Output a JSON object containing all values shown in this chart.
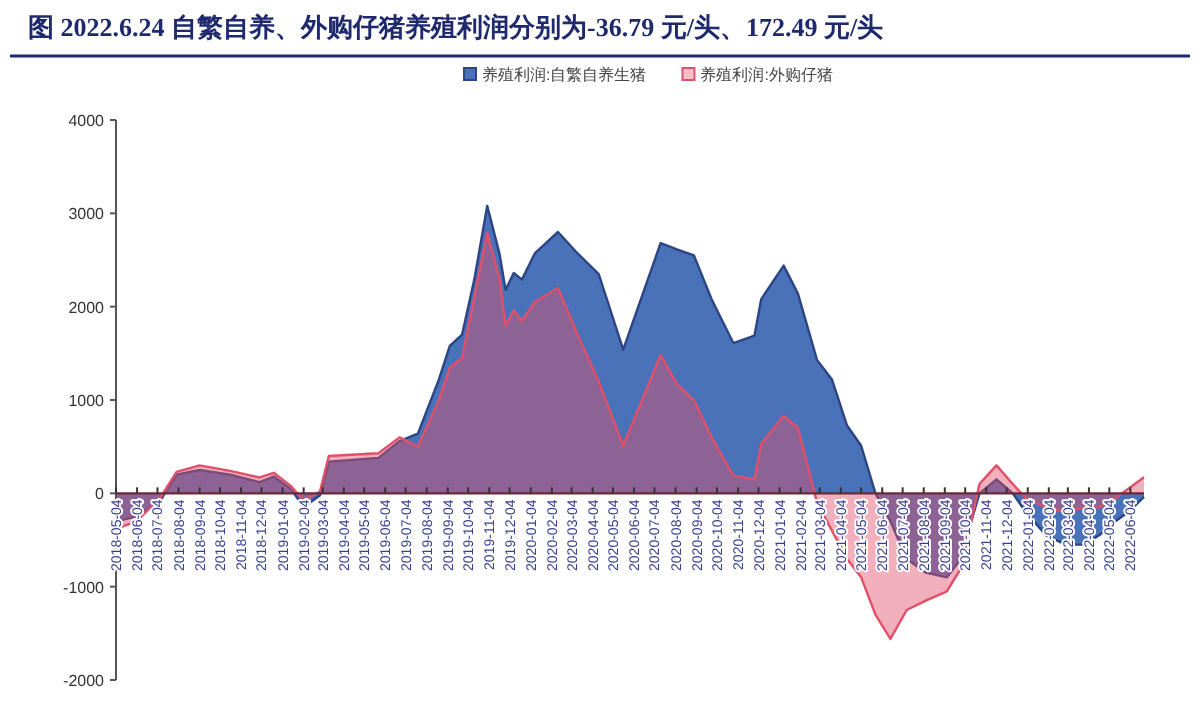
{
  "chart_data": {
    "type": "area",
    "title": "图 2022.6.24 自繁自养、外购仔猪养殖利润分别为-36.79 元/头、172.49 元/头",
    "legend": "top",
    "x": [
      "2018-05-04",
      "2018-06-03",
      "2018-07-08",
      "2018-08-01",
      "2018-09-04",
      "2018-10-19",
      "2018-12-01",
      "2018-12-22",
      "2019-01-16",
      "2019-02-04",
      "2019-02-28",
      "2019-03-13",
      "2019-05-25",
      "2019-06-25",
      "2019-07-22",
      "2019-08-22",
      "2019-09-07",
      "2019-09-25",
      "2019-10-13",
      "2019-11-01",
      "2019-11-19",
      "2019-11-28",
      "2019-12-10",
      "2019-12-22",
      "2020-01-10",
      "2020-02-13",
      "2020-03-13",
      "2020-04-13",
      "2020-05-19",
      "2020-07-13",
      "2020-08-07",
      "2020-08-31",
      "2020-09-26",
      "2020-10-28",
      "2020-11-28",
      "2020-12-08",
      "2021-01-10",
      "2021-01-31",
      "2021-02-28",
      "2021-03-22",
      "2021-04-13",
      "2021-05-04",
      "2021-05-25",
      "2021-06-16",
      "2021-07-10",
      "2021-08-07",
      "2021-09-07",
      "2021-09-28",
      "2021-10-13",
      "2021-10-25",
      "2021-11-19",
      "2021-12-13",
      "2022-01-01",
      "2022-01-31",
      "2022-03-01",
      "2022-03-28",
      "2022-04-19",
      "2022-05-13",
      "2022-06-01",
      "2022-06-24"
    ],
    "series": [
      {
        "name": "养殖利润:自繁自养生猪",
        "color": "#4a72b8",
        "values": [
          -300,
          -250,
          -80,
          200,
          250,
          200,
          120,
          180,
          50,
          -150,
          -20,
          340,
          380,
          560,
          640,
          1220,
          1580,
          1700,
          2290,
          3080,
          2570,
          2180,
          2360,
          2290,
          2570,
          2800,
          2570,
          2350,
          1540,
          2680,
          2610,
          2550,
          2080,
          1610,
          1690,
          2080,
          2440,
          2140,
          1430,
          1220,
          730,
          510,
          0,
          -300,
          -700,
          -850,
          -900,
          -700,
          -300,
          0,
          150,
          0,
          -200,
          -450,
          -550,
          -550,
          -450,
          -300,
          -200,
          -37
        ]
      },
      {
        "name": "养殖利润:外购仔猪",
        "color": "#e0506a",
        "values": [
          -380,
          -300,
          -50,
          230,
          300,
          240,
          170,
          220,
          80,
          -80,
          20,
          400,
          430,
          600,
          500,
          1000,
          1350,
          1450,
          2100,
          2790,
          2300,
          1800,
          1960,
          1850,
          2050,
          2200,
          1700,
          1200,
          510,
          1480,
          1160,
          1000,
          600,
          190,
          150,
          530,
          830,
          700,
          -100,
          -400,
          -700,
          -900,
          -1300,
          -1560,
          -1250,
          -1150,
          -1050,
          -800,
          -300,
          100,
          300,
          100,
          -50,
          -150,
          -200,
          -150,
          -150,
          -50,
          50,
          172
        ]
      }
    ],
    "xlim": [
      "2018-05-04",
      "2022-06-24"
    ],
    "xticks": [
      "2018-05-04",
      "2018-06-04",
      "2018-07-04",
      "2018-08-04",
      "2018-09-04",
      "2018-10-04",
      "2018-11-04",
      "2018-12-04",
      "2019-01-04",
      "2019-02-04",
      "2019-03-04",
      "2019-04-04",
      "2019-05-04",
      "2019-06-04",
      "2019-07-04",
      "2019-08-04",
      "2019-09-04",
      "2019-10-04",
      "2019-11-04",
      "2019-12-04",
      "2020-01-04",
      "2020-02-04",
      "2020-03-04",
      "2020-04-04",
      "2020-05-04",
      "2020-06-04",
      "2020-07-04",
      "2020-08-04",
      "2020-09-04",
      "2020-10-04",
      "2020-11-04",
      "2020-12-04",
      "2021-01-04",
      "2021-02-04",
      "2021-03-04",
      "2021-04-04",
      "2021-05-04",
      "2021-06-04",
      "2021-07-04",
      "2021-08-04",
      "2021-09-04",
      "2021-10-04",
      "2021-11-04",
      "2021-12-04",
      "2022-01-04",
      "2022-02-04",
      "2022-03-04",
      "2022-04-04",
      "2022-05-04",
      "2022-06-04"
    ],
    "ylim": [
      -2000,
      4000
    ],
    "yticks": [
      -2000,
      -1000,
      0,
      1000,
      2000,
      3000,
      4000
    ],
    "grid": false
  }
}
